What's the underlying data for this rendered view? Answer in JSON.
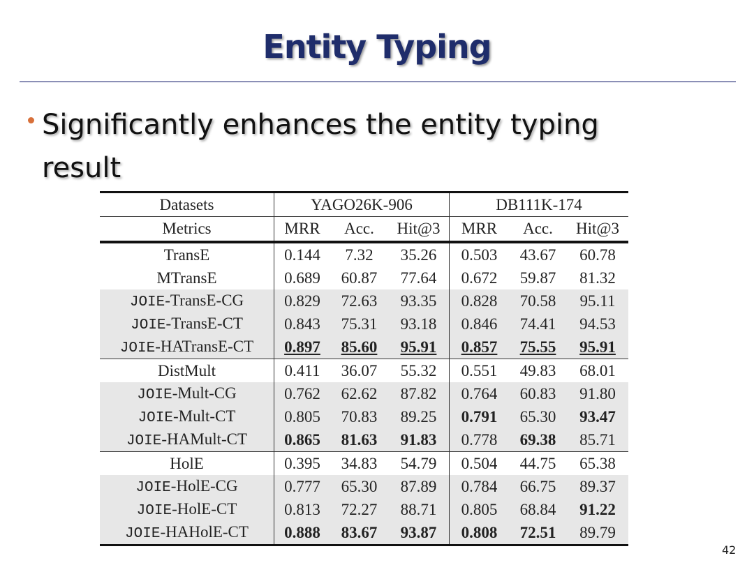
{
  "header": {
    "title": "Entity Typing",
    "page_number": "42"
  },
  "bullets": [
    "Significantly enhances the entity typing result"
  ],
  "table": {
    "datasets": [
      "Datasets",
      "YAGO26K-906",
      "DB111K-174"
    ],
    "metrics": [
      "Metrics",
      "MRR",
      "Acc.",
      "Hit@3",
      "MRR",
      "Acc.",
      "Hit@3"
    ],
    "families": [
      {
        "rows": [
          {
            "method": "TransE",
            "shaded": false,
            "values": [
              "0.144",
              "7.32",
              "35.26",
              "0.503",
              "43.67",
              "60.78"
            ],
            "bold": [
              false,
              false,
              false,
              false,
              false,
              false
            ]
          },
          {
            "method": "MTransE",
            "shaded": false,
            "values": [
              "0.689",
              "60.87",
              "77.64",
              "0.672",
              "59.87",
              "81.32"
            ],
            "bold": [
              false,
              false,
              false,
              false,
              false,
              false
            ]
          },
          {
            "prefix": "JOIE",
            "method": "-TransE-CG",
            "shaded": true,
            "values": [
              "0.829",
              "72.63",
              "93.35",
              "0.828",
              "70.58",
              "95.11"
            ],
            "bold": [
              false,
              false,
              false,
              false,
              false,
              false
            ]
          },
          {
            "prefix": "JOIE",
            "method": "-TransE-CT",
            "shaded": true,
            "values": [
              "0.843",
              "75.31",
              "93.18",
              "0.846",
              "74.41",
              "94.53"
            ],
            "bold": [
              false,
              false,
              false,
              false,
              false,
              false
            ]
          },
          {
            "prefix": "JOIE",
            "method": "-HATransE-CT",
            "shaded": true,
            "values": [
              "0.897",
              "85.60",
              "95.91",
              "0.857",
              "75.55",
              "95.91"
            ],
            "bold": [
              true,
              true,
              true,
              true,
              true,
              true
            ],
            "underline": true
          }
        ]
      },
      {
        "rows": [
          {
            "method": "DistMult",
            "shaded": false,
            "values": [
              "0.411",
              "36.07",
              "55.32",
              "0.551",
              "49.83",
              "68.01"
            ],
            "bold": [
              false,
              false,
              false,
              false,
              false,
              false
            ]
          },
          {
            "prefix": "JOIE",
            "method": "-Mult-CG",
            "shaded": true,
            "values": [
              "0.762",
              "62.62",
              "87.82",
              "0.764",
              "60.83",
              "91.80"
            ],
            "bold": [
              false,
              false,
              false,
              false,
              false,
              false
            ]
          },
          {
            "prefix": "JOIE",
            "method": "-Mult-CT",
            "shaded": true,
            "values": [
              "0.805",
              "70.83",
              "89.25",
              "0.791",
              "65.30",
              "93.47"
            ],
            "bold": [
              false,
              false,
              false,
              true,
              false,
              true
            ]
          },
          {
            "prefix": "JOIE",
            "method": "-HAMult-CT",
            "shaded": true,
            "values": [
              "0.865",
              "81.63",
              "91.83",
              "0.778",
              "69.38",
              "85.71"
            ],
            "bold": [
              true,
              true,
              true,
              false,
              true,
              false
            ]
          }
        ]
      },
      {
        "rows": [
          {
            "method": "HolE",
            "shaded": false,
            "values": [
              "0.395",
              "34.83",
              "54.79",
              "0.504",
              "44.75",
              "65.38"
            ],
            "bold": [
              false,
              false,
              false,
              false,
              false,
              false
            ]
          },
          {
            "prefix": "JOIE",
            "method": "-HolE-CG",
            "shaded": true,
            "values": [
              "0.777",
              "65.30",
              "87.89",
              "0.784",
              "66.75",
              "89.37"
            ],
            "bold": [
              false,
              false,
              false,
              false,
              false,
              false
            ]
          },
          {
            "prefix": "JOIE",
            "method": "-HolE-CT",
            "shaded": true,
            "values": [
              "0.813",
              "72.27",
              "88.71",
              "0.805",
              "68.84",
              "91.22"
            ],
            "bold": [
              false,
              false,
              false,
              false,
              false,
              true
            ]
          },
          {
            "prefix": "JOIE",
            "method": "-HAHolE-CT",
            "shaded": true,
            "values": [
              "0.888",
              "83.67",
              "93.87",
              "0.808",
              "72.51",
              "89.79"
            ],
            "bold": [
              true,
              true,
              true,
              true,
              true,
              false
            ]
          }
        ]
      }
    ]
  }
}
